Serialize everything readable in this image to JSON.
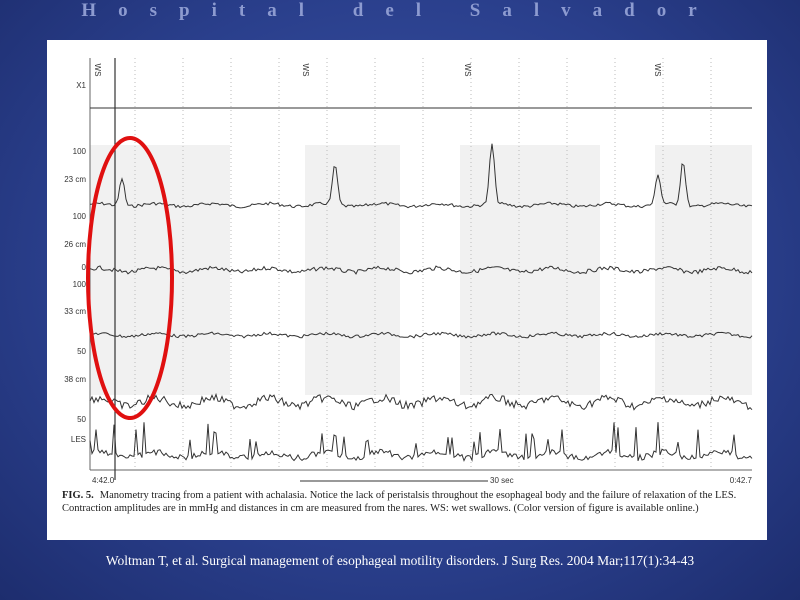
{
  "header": {
    "title": "Hospital del Salvador"
  },
  "figure": {
    "swallow_markers": [
      "WS",
      "WS",
      "WS",
      "WS"
    ],
    "channel_labels": [
      {
        "scale": "X1",
        "name": null
      },
      {
        "scale": "100",
        "name": "23 cm"
      },
      {
        "scale": "100",
        "name": "26 cm",
        "zero": "0"
      },
      {
        "scale": "100",
        "name": "33 cm"
      },
      {
        "scale": "50",
        "name": "38 cm"
      },
      {
        "scale": "50",
        "name": "LES"
      }
    ],
    "time_start": "4:42.0",
    "time_scale": "30 sec",
    "time_end": "0:42.7",
    "caption": {
      "label": "FIG. 5.",
      "text": "Manometry tracing from a patient with achalasia. Notice the lack of peristalsis throughout the esophageal body and the failure of relaxation of the LES. Contraction amplitudes are in mmHg and distances in cm are measured from the nares. WS: wet swallows. (Color version of figure is available online.)"
    }
  },
  "citation": "Woltman T, et al. Surgical management of esophageal motility disorders. J Surg Res. 2004 Mar;117(1):34-43"
}
